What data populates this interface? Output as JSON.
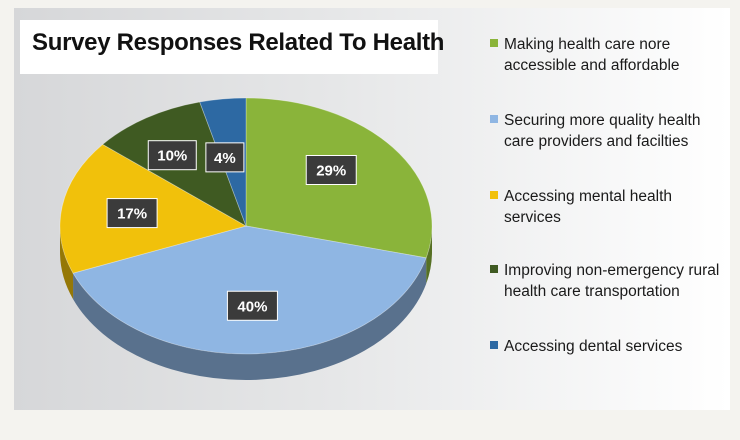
{
  "title": "Survey Responses Related To Health",
  "chart_data": {
    "type": "pie",
    "title": "Survey Responses Related To Health",
    "slices": [
      {
        "label": "Making health care nore accessible and affordable",
        "value": 29,
        "display": "29%",
        "color": "#8ab43a"
      },
      {
        "label": "Securing more quality health care providers and facilties",
        "value": 40,
        "display": "40%",
        "color": "#8fb6e3"
      },
      {
        "label": "Accessing mental health services",
        "value": 17,
        "display": "17%",
        "color": "#f1c10b"
      },
      {
        "label": "Improving non-emergency rural health care transportation",
        "value": 10,
        "display": "10%",
        "color": "#3f5a22"
      },
      {
        "label": "Accessing dental services",
        "value": 4,
        "display": "4%",
        "color": "#2d69a3"
      }
    ],
    "legend_position": "right",
    "three_d": true
  }
}
